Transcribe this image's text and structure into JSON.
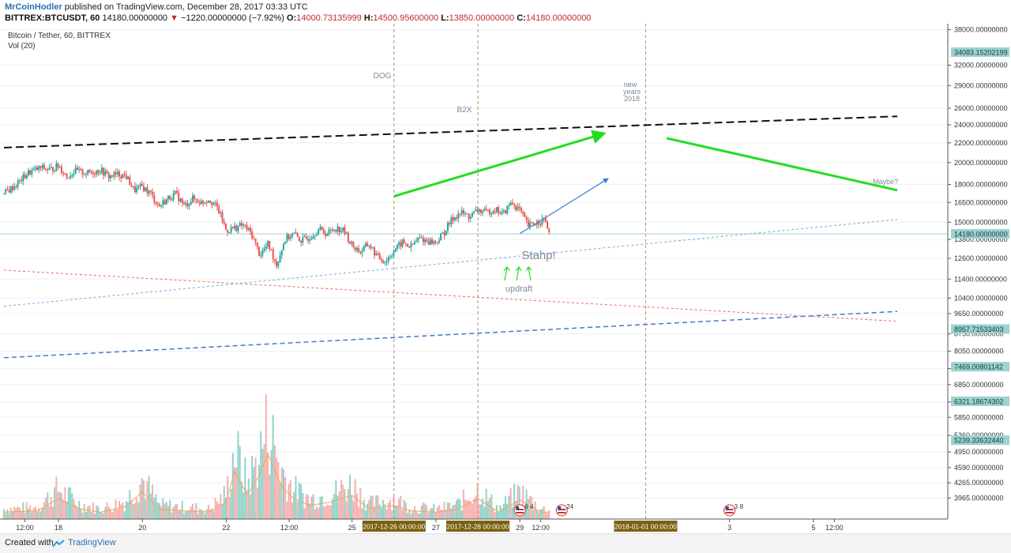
{
  "header": {
    "author": "MrCoinHodler",
    "published": " published on TradingView.com, December 28, 2017 03:33 UTC",
    "symbol": "BITTREX:BTCUSDT, 60",
    "price": "14180.00000000",
    "change": "−1220.00000000 (−7.92%)",
    "o_label": "O:",
    "o_value": "14000.73135999",
    "h_label": "H:",
    "h_value": "14500.95600000",
    "l_label": "L:",
    "l_value": "13850.00000000",
    "c_label": "C:",
    "c_value": "14180.00000000"
  },
  "legend": {
    "title": "Bitcoin / Tether, 60, BITTREX",
    "volume": "Vol (20)"
  },
  "footer": {
    "created_with": "Created with",
    "brand": "TradingView"
  },
  "colors": {
    "up": "#26a69a",
    "down": "#ef5350",
    "up_vol": "#8fd3c9",
    "down_vol": "#f6b0ae",
    "green_arrow": "#22dd22",
    "blue_arrow": "#3b7fd0",
    "vline": "#a49a6a",
    "last_price_line": "#9fd6cf",
    "date_tag": "#7a6211",
    "price_tag": "#9ad3cf"
  },
  "chart_data": {
    "type": "candlestick",
    "title": "Bitcoin / Tether, 60, BITTREX",
    "ylim": [
      3650,
      38500
    ],
    "y_scale": "log",
    "y_ticks": [
      "38000.00000000",
      "32000.00000000",
      "29000.00000000",
      "26000.00000000",
      "24000.00000000",
      "22000.00000000",
      "20000.00000000",
      "18000.00000000",
      "16500.00000000",
      "15000.00000000",
      "13800.00000000",
      "12600.00000000",
      "11400.00000000",
      "10400.00000000",
      "9650.00000000",
      "8750.00000000",
      "8050.00000000",
      "7400.00000000",
      "6850.00000000",
      "6300.00000000",
      "5850.00000000",
      "5360.00000000",
      "4950.00000000",
      "4590.00000000",
      "4265.00000000",
      "3965.00000000"
    ],
    "y_tick_values": [
      38000,
      32000,
      29000,
      26000,
      24000,
      22000,
      20000,
      18000,
      16500,
      15000,
      13800,
      12600,
      11400,
      10400,
      9650,
      8750,
      8050,
      7400,
      6850,
      6300,
      5850,
      5360,
      4950,
      4590,
      4265,
      3965
    ],
    "price_tags": [
      {
        "label": "34083.15202199",
        "value": 34083.15
      },
      {
        "label": "14180.00000000",
        "value": 14180
      },
      {
        "label": "8957.71533403",
        "value": 8957.7
      },
      {
        "label": "7469.00801142",
        "value": 7469
      },
      {
        "label": "6321.18674302",
        "value": 6321.2
      },
      {
        "label": "5239.33632440",
        "value": 5239.3
      }
    ],
    "x_ticks": [
      {
        "label": "12:00",
        "t": 0.2
      },
      {
        "label": "18",
        "t": 1.0
      },
      {
        "label": "20",
        "t": 3.0
      },
      {
        "label": "22",
        "t": 5.0
      },
      {
        "label": "12:00",
        "t": 6.5
      },
      {
        "label": "25",
        "t": 8.0
      },
      {
        "label": "27",
        "t": 10.0
      },
      {
        "label": "29",
        "t": 12.0
      },
      {
        "label": "12:00",
        "t": 12.5
      },
      {
        "label": "3",
        "t": 17.0
      },
      {
        "label": "5",
        "t": 19.0
      },
      {
        "label": "12:00",
        "t": 19.5
      }
    ],
    "date_tags": [
      {
        "label": "2017-12-26 00:00:00",
        "t": 9.0
      },
      {
        "label": "2017-12-28 00:00:00",
        "t": 11.0
      },
      {
        "label": "2018-01-01 00:00:00",
        "t": 15.0
      }
    ],
    "last_price": 14180,
    "close_path": [
      [
        -0.3,
        17200
      ],
      [
        0.0,
        18000
      ],
      [
        0.3,
        19100
      ],
      [
        0.6,
        19500
      ],
      [
        0.8,
        19300
      ],
      [
        1.0,
        19700
      ],
      [
        1.2,
        18700
      ],
      [
        1.4,
        19200
      ],
      [
        1.7,
        19000
      ],
      [
        2.0,
        19300
      ],
      [
        2.2,
        18700
      ],
      [
        2.4,
        18900
      ],
      [
        2.6,
        18800
      ],
      [
        2.8,
        17500
      ],
      [
        3.0,
        17800
      ],
      [
        3.2,
        17200
      ],
      [
        3.4,
        16200
      ],
      [
        3.6,
        16800
      ],
      [
        3.8,
        17200
      ],
      [
        4.0,
        16200
      ],
      [
        4.2,
        16800
      ],
      [
        4.4,
        16500
      ],
      [
        4.6,
        16800
      ],
      [
        4.8,
        16000
      ],
      [
        5.0,
        14400
      ],
      [
        5.2,
        14600
      ],
      [
        5.4,
        14800
      ],
      [
        5.6,
        14200
      ],
      [
        5.8,
        12800
      ],
      [
        6.0,
        13500
      ],
      [
        6.2,
        12200
      ],
      [
        6.4,
        13800
      ],
      [
        6.6,
        14200
      ],
      [
        6.8,
        13700
      ],
      [
        7.0,
        14000
      ],
      [
        7.2,
        14500
      ],
      [
        7.4,
        14200
      ],
      [
        7.6,
        14600
      ],
      [
        7.8,
        14400
      ],
      [
        8.0,
        13400
      ],
      [
        8.2,
        13000
      ],
      [
        8.4,
        13500
      ],
      [
        8.6,
        12700
      ],
      [
        8.8,
        12400
      ],
      [
        9.0,
        13100
      ],
      [
        9.2,
        13600
      ],
      [
        9.4,
        13300
      ],
      [
        9.6,
        13900
      ],
      [
        9.8,
        13700
      ],
      [
        10.0,
        13600
      ],
      [
        10.2,
        14300
      ],
      [
        10.4,
        15300
      ],
      [
        10.6,
        15700
      ],
      [
        10.8,
        15400
      ],
      [
        11.0,
        15900
      ],
      [
        11.2,
        15700
      ],
      [
        11.4,
        16000
      ],
      [
        11.6,
        15600
      ],
      [
        11.8,
        16500
      ],
      [
        12.0,
        15900
      ],
      [
        12.2,
        14700
      ],
      [
        12.4,
        15000
      ],
      [
        12.6,
        15200
      ],
      [
        12.7,
        14200
      ]
    ],
    "volume_ylim": [
      0,
      100
    ],
    "volume_profile": [
      [
        -0.3,
        10
      ],
      [
        0.5,
        12
      ],
      [
        1.0,
        30
      ],
      [
        1.5,
        15
      ],
      [
        2.0,
        10
      ],
      [
        2.6,
        18
      ],
      [
        3.0,
        40
      ],
      [
        3.4,
        14
      ],
      [
        4.0,
        12
      ],
      [
        4.6,
        10
      ],
      [
        5.0,
        25
      ],
      [
        5.2,
        70
      ],
      [
        5.5,
        35
      ],
      [
        5.8,
        65
      ],
      [
        6.0,
        95
      ],
      [
        6.3,
        50
      ],
      [
        6.6,
        30
      ],
      [
        7.0,
        20
      ],
      [
        7.5,
        25
      ],
      [
        8.0,
        35
      ],
      [
        8.4,
        15
      ],
      [
        9.0,
        20
      ],
      [
        9.4,
        12
      ],
      [
        10.0,
        10
      ],
      [
        10.5,
        14
      ],
      [
        11.0,
        30
      ],
      [
        11.5,
        10
      ],
      [
        12.0,
        28
      ],
      [
        12.5,
        10
      ]
    ],
    "events": [
      {
        "label": "6",
        "badge": "4",
        "t": 12.0
      },
      {
        "label": "24",
        "badge": "",
        "t": 13.0
      },
      {
        "label": "3",
        "badge": "8",
        "t": 17.0
      }
    ],
    "annotations": [
      {
        "text": "DOG",
        "t": 8.4,
        "price": 28000
      },
      {
        "text": "B2X",
        "t": 10.2,
        "price": 25000
      },
      {
        "text": "new years 2018",
        "t": 14.6,
        "price": 27000
      },
      {
        "text": "Maybe?",
        "t": 20.0,
        "price": 17800
      },
      {
        "text": "Stahp!",
        "t": 11.5,
        "price": 12900
      },
      {
        "text": "updraft",
        "t": 11.2,
        "price": 10700
      }
    ],
    "labels": {
      "dog": "DOG",
      "b2x": "B2X",
      "new_years": [
        "new",
        "years",
        "2018"
      ],
      "maybe": "Maybe?",
      "stahp": "Stahp!",
      "updraft": "updraft"
    },
    "trendlines": [
      {
        "name": "black-dashed-resistance",
        "from": [
          -0.3,
          21500
        ],
        "to": [
          21.0,
          25000
        ],
        "color": "#111111",
        "style": "dashed"
      },
      {
        "name": "green-up-arrow",
        "from": [
          9.0,
          17000
        ],
        "to": [
          14.0,
          23000
        ],
        "color": "#22dd22",
        "style": "arrow"
      },
      {
        "name": "green-down-line",
        "from": [
          15.5,
          22500
        ],
        "to": [
          21.0,
          17500
        ],
        "color": "#22dd22",
        "style": "solid"
      },
      {
        "name": "blue-arrow",
        "from": [
          12.0,
          14200
        ],
        "to": [
          14.1,
          18500
        ],
        "color": "#3b7fd0",
        "style": "arrow"
      },
      {
        "name": "blue-dotted-support",
        "from": [
          -0.3,
          10000
        ],
        "to": [
          21.0,
          15200
        ],
        "color": "#7aa6e0",
        "style": "dotted"
      },
      {
        "name": "red-dotted-line",
        "from": [
          -0.3,
          11900
        ],
        "to": [
          21.0,
          9300
        ],
        "color": "#e26a6a",
        "style": "dotted"
      },
      {
        "name": "blue-dashed-support",
        "from": [
          -0.3,
          7800
        ],
        "to": [
          21.0,
          9750
        ],
        "color": "#4a78c8",
        "style": "dashed"
      }
    ]
  }
}
